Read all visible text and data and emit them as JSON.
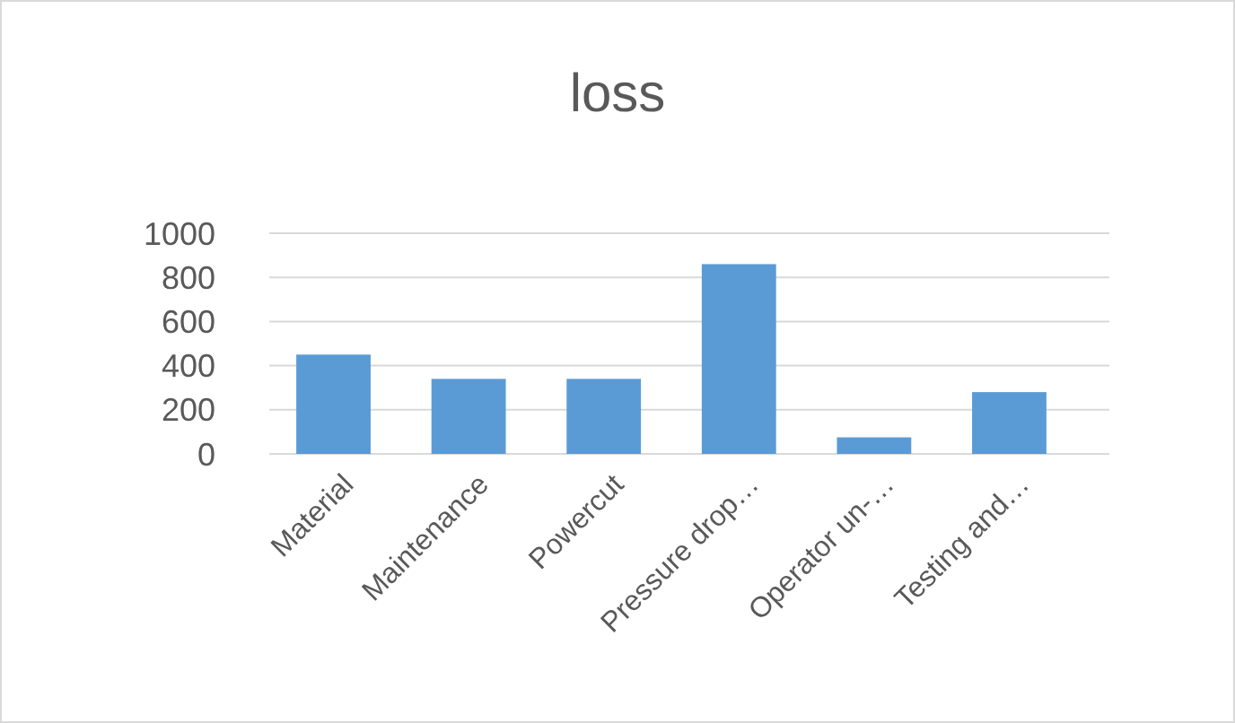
{
  "chart_data": {
    "type": "bar",
    "title": "loss",
    "categories": [
      "Material",
      "Maintenance",
      "Powercut",
      "Pressure drop…",
      "Operator un-…",
      "Testing and…"
    ],
    "values": [
      450,
      340,
      340,
      860,
      75,
      280
    ],
    "color": "#5b9bd5",
    "ylim": [
      0,
      1000
    ],
    "yticks": [
      0,
      200,
      400,
      600,
      800,
      1000
    ],
    "grid": true
  }
}
